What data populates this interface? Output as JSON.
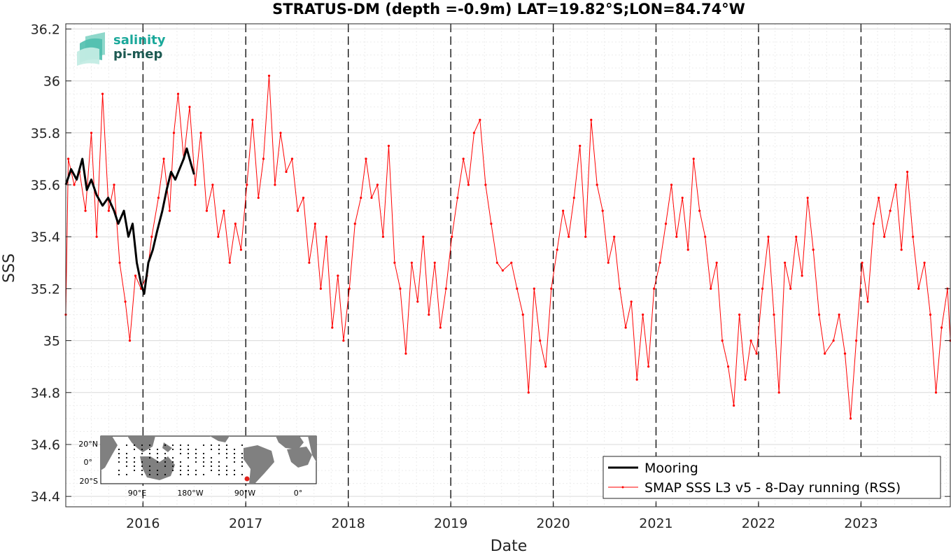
{
  "chart_data": {
    "type": "line",
    "title": "STRATUS-DM (depth =-0.9m) LAT=19.82°S;LON=84.74°W",
    "xlabel": "Date",
    "ylabel": "SSS",
    "xlim": [
      "2015-04-01",
      "2023-11-15"
    ],
    "ylim": [
      34.36,
      36.22
    ],
    "yticks": [
      34.4,
      34.6,
      34.8,
      35,
      35.2,
      35.4,
      35.6,
      35.8,
      36,
      36.2
    ],
    "ytick_labels": [
      "34.4",
      "34.6",
      "34.8",
      "35",
      "35.2",
      "35.4",
      "35.6",
      "35.8",
      "36",
      "36.2"
    ],
    "xticks": [
      "2016-01-01",
      "2017-01-01",
      "2018-01-01",
      "2019-01-01",
      "2020-01-01",
      "2021-01-01",
      "2022-01-01",
      "2023-01-01"
    ],
    "xtick_labels": [
      "2016",
      "2017",
      "2018",
      "2019",
      "2020",
      "2021",
      "2022",
      "2023"
    ],
    "year_dividers": [
      "2016-01-01",
      "2017-01-01",
      "2018-01-01",
      "2019-01-01",
      "2020-01-01",
      "2021-01-01",
      "2022-01-01",
      "2023-01-01"
    ],
    "grid": true,
    "legend_position": "bottom-right",
    "series": [
      {
        "name": "Mooring",
        "color": "#000000",
        "style": "thick-line",
        "points": [
          [
            "2015-04-01",
            35.6
          ],
          [
            "2015-04-20",
            35.66
          ],
          [
            "2015-05-10",
            35.62
          ],
          [
            "2015-05-30",
            35.7
          ],
          [
            "2015-06-15",
            35.58
          ],
          [
            "2015-07-01",
            35.62
          ],
          [
            "2015-07-20",
            35.56
          ],
          [
            "2015-08-10",
            35.52
          ],
          [
            "2015-08-30",
            35.55
          ],
          [
            "2015-09-20",
            35.5
          ],
          [
            "2015-10-05",
            35.45
          ],
          [
            "2015-10-25",
            35.5
          ],
          [
            "2015-11-10",
            35.4
          ],
          [
            "2015-11-25",
            35.45
          ],
          [
            "2015-12-10",
            35.3
          ],
          [
            "2015-12-25",
            35.22
          ],
          [
            "2016-01-05",
            35.18
          ],
          [
            "2016-01-20",
            35.3
          ],
          [
            "2016-02-05",
            35.35
          ],
          [
            "2016-02-20",
            35.42
          ],
          [
            "2016-03-10",
            35.5
          ],
          [
            "2016-03-25",
            35.58
          ],
          [
            "2016-04-10",
            35.65
          ],
          [
            "2016-04-25",
            35.62
          ],
          [
            "2016-05-10",
            35.66
          ],
          [
            "2016-05-25",
            35.7
          ],
          [
            "2016-06-05",
            35.74
          ],
          [
            "2016-06-20",
            35.68
          ],
          [
            "2016-07-01",
            35.64
          ]
        ]
      },
      {
        "name": "SMAP SSS L3 v5 - 8-Day running (RSS)",
        "color": "#ff0000",
        "style": "thin-line-with-dots",
        "points": [
          [
            "2015-04-01",
            35.1
          ],
          [
            "2015-04-10",
            35.7
          ],
          [
            "2015-05-01",
            35.6
          ],
          [
            "2015-05-20",
            35.65
          ],
          [
            "2015-06-10",
            35.5
          ],
          [
            "2015-07-01",
            35.8
          ],
          [
            "2015-07-20",
            35.4
          ],
          [
            "2015-08-10",
            35.95
          ],
          [
            "2015-09-01",
            35.5
          ],
          [
            "2015-09-20",
            35.6
          ],
          [
            "2015-10-10",
            35.3
          ],
          [
            "2015-10-30",
            35.15
          ],
          [
            "2015-11-15",
            35.0
          ],
          [
            "2015-12-05",
            35.25
          ],
          [
            "2015-12-25",
            35.2
          ],
          [
            "2016-01-15",
            35.25
          ],
          [
            "2016-02-01",
            35.4
          ],
          [
            "2016-02-25",
            35.55
          ],
          [
            "2016-03-15",
            35.7
          ],
          [
            "2016-04-05",
            35.5
          ],
          [
            "2016-04-20",
            35.8
          ],
          [
            "2016-05-05",
            35.95
          ],
          [
            "2016-05-25",
            35.7
          ],
          [
            "2016-06-15",
            35.9
          ],
          [
            "2016-07-05",
            35.6
          ],
          [
            "2016-07-25",
            35.8
          ],
          [
            "2016-08-15",
            35.5
          ],
          [
            "2016-09-05",
            35.6
          ],
          [
            "2016-09-25",
            35.4
          ],
          [
            "2016-10-15",
            35.5
          ],
          [
            "2016-11-05",
            35.3
          ],
          [
            "2016-11-25",
            35.45
          ],
          [
            "2016-12-15",
            35.35
          ],
          [
            "2017-01-05",
            35.6
          ],
          [
            "2017-01-25",
            35.85
          ],
          [
            "2017-02-15",
            35.55
          ],
          [
            "2017-03-05",
            35.7
          ],
          [
            "2017-03-25",
            36.02
          ],
          [
            "2017-04-15",
            35.6
          ],
          [
            "2017-05-05",
            35.8
          ],
          [
            "2017-05-25",
            35.65
          ],
          [
            "2017-06-15",
            35.7
          ],
          [
            "2017-07-05",
            35.5
          ],
          [
            "2017-07-25",
            35.55
          ],
          [
            "2017-08-15",
            35.3
          ],
          [
            "2017-09-05",
            35.45
          ],
          [
            "2017-09-25",
            35.2
          ],
          [
            "2017-10-15",
            35.4
          ],
          [
            "2017-11-05",
            35.05
          ],
          [
            "2017-11-25",
            35.25
          ],
          [
            "2017-12-15",
            35.0
          ],
          [
            "2018-01-05",
            35.2
          ],
          [
            "2018-01-25",
            35.45
          ],
          [
            "2018-02-15",
            35.55
          ],
          [
            "2018-03-05",
            35.7
          ],
          [
            "2018-03-25",
            35.55
          ],
          [
            "2018-04-15",
            35.6
          ],
          [
            "2018-05-05",
            35.4
          ],
          [
            "2018-05-25",
            35.75
          ],
          [
            "2018-06-15",
            35.3
          ],
          [
            "2018-07-05",
            35.2
          ],
          [
            "2018-07-25",
            34.95
          ],
          [
            "2018-08-15",
            35.3
          ],
          [
            "2018-09-05",
            35.15
          ],
          [
            "2018-09-25",
            35.4
          ],
          [
            "2018-10-15",
            35.1
          ],
          [
            "2018-11-05",
            35.3
          ],
          [
            "2018-11-25",
            35.05
          ],
          [
            "2018-12-15",
            35.2
          ],
          [
            "2019-01-05",
            35.4
          ],
          [
            "2019-01-25",
            35.55
          ],
          [
            "2019-02-15",
            35.7
          ],
          [
            "2019-03-05",
            35.6
          ],
          [
            "2019-03-25",
            35.8
          ],
          [
            "2019-04-15",
            35.85
          ],
          [
            "2019-05-05",
            35.6
          ],
          [
            "2019-05-25",
            35.45
          ],
          [
            "2019-06-15",
            35.3
          ],
          [
            "2019-07-05",
            35.27
          ],
          [
            "2019-08-05",
            35.3
          ],
          [
            "2019-08-25",
            35.2
          ],
          [
            "2019-09-15",
            35.1
          ],
          [
            "2019-10-05",
            34.8
          ],
          [
            "2019-10-25",
            35.2
          ],
          [
            "2019-11-15",
            35.0
          ],
          [
            "2019-12-05",
            34.9
          ],
          [
            "2019-12-25",
            35.2
          ],
          [
            "2020-01-15",
            35.35
          ],
          [
            "2020-02-05",
            35.5
          ],
          [
            "2020-02-25",
            35.4
          ],
          [
            "2020-03-15",
            35.55
          ],
          [
            "2020-04-05",
            35.75
          ],
          [
            "2020-04-25",
            35.4
          ],
          [
            "2020-05-15",
            35.85
          ],
          [
            "2020-06-05",
            35.6
          ],
          [
            "2020-06-25",
            35.5
          ],
          [
            "2020-07-15",
            35.3
          ],
          [
            "2020-08-05",
            35.4
          ],
          [
            "2020-08-25",
            35.2
          ],
          [
            "2020-09-15",
            35.05
          ],
          [
            "2020-10-05",
            35.15
          ],
          [
            "2020-10-25",
            34.85
          ],
          [
            "2020-11-15",
            35.1
          ],
          [
            "2020-12-05",
            34.9
          ],
          [
            "2020-12-25",
            35.2
          ],
          [
            "2021-01-15",
            35.3
          ],
          [
            "2021-02-05",
            35.45
          ],
          [
            "2021-02-25",
            35.6
          ],
          [
            "2021-03-15",
            35.4
          ],
          [
            "2021-04-05",
            35.55
          ],
          [
            "2021-04-25",
            35.35
          ],
          [
            "2021-05-15",
            35.7
          ],
          [
            "2021-06-05",
            35.5
          ],
          [
            "2021-06-25",
            35.4
          ],
          [
            "2021-07-15",
            35.2
          ],
          [
            "2021-08-05",
            35.3
          ],
          [
            "2021-08-25",
            35.0
          ],
          [
            "2021-09-15",
            34.9
          ],
          [
            "2021-10-05",
            34.75
          ],
          [
            "2021-10-25",
            35.1
          ],
          [
            "2021-11-15",
            34.85
          ],
          [
            "2021-12-05",
            35.0
          ],
          [
            "2021-12-25",
            34.95
          ],
          [
            "2022-01-15",
            35.2
          ],
          [
            "2022-02-05",
            35.4
          ],
          [
            "2022-02-25",
            35.1
          ],
          [
            "2022-03-15",
            34.8
          ],
          [
            "2022-04-05",
            35.3
          ],
          [
            "2022-04-25",
            35.2
          ],
          [
            "2022-05-15",
            35.4
          ],
          [
            "2022-06-05",
            35.25
          ],
          [
            "2022-06-25",
            35.55
          ],
          [
            "2022-07-15",
            35.35
          ],
          [
            "2022-08-05",
            35.1
          ],
          [
            "2022-08-25",
            34.95
          ],
          [
            "2022-09-25",
            35.0
          ],
          [
            "2022-10-15",
            35.1
          ],
          [
            "2022-11-05",
            34.95
          ],
          [
            "2022-11-25",
            34.7
          ],
          [
            "2022-12-15",
            35.0
          ],
          [
            "2023-01-05",
            35.3
          ],
          [
            "2023-01-25",
            35.15
          ],
          [
            "2023-02-15",
            35.45
          ],
          [
            "2023-03-05",
            35.55
          ],
          [
            "2023-03-25",
            35.4
          ],
          [
            "2023-04-15",
            35.5
          ],
          [
            "2023-05-05",
            35.6
          ],
          [
            "2023-05-25",
            35.35
          ],
          [
            "2023-06-15",
            35.65
          ],
          [
            "2023-07-05",
            35.4
          ],
          [
            "2023-07-25",
            35.2
          ],
          [
            "2023-08-15",
            35.3
          ],
          [
            "2023-09-05",
            35.1
          ],
          [
            "2023-09-25",
            34.8
          ],
          [
            "2023-10-15",
            35.05
          ],
          [
            "2023-11-05",
            35.2
          ],
          [
            "2023-11-15",
            35.0
          ]
        ]
      }
    ]
  },
  "logo": {
    "line1": "salinity",
    "line2": "pi-mep"
  },
  "inset_map": {
    "lat_labels": [
      "20°N",
      "0°",
      "20°S"
    ],
    "lon_labels": [
      "90°E",
      "180°W",
      "90°W",
      "0°"
    ],
    "marker_color": "#e0201a",
    "land_color": "#808080"
  },
  "colors": {
    "mooring": "#000000",
    "smap": "#ff0000",
    "logo_primary": "#1aa89a",
    "logo_secondary": "#1d5a52"
  }
}
